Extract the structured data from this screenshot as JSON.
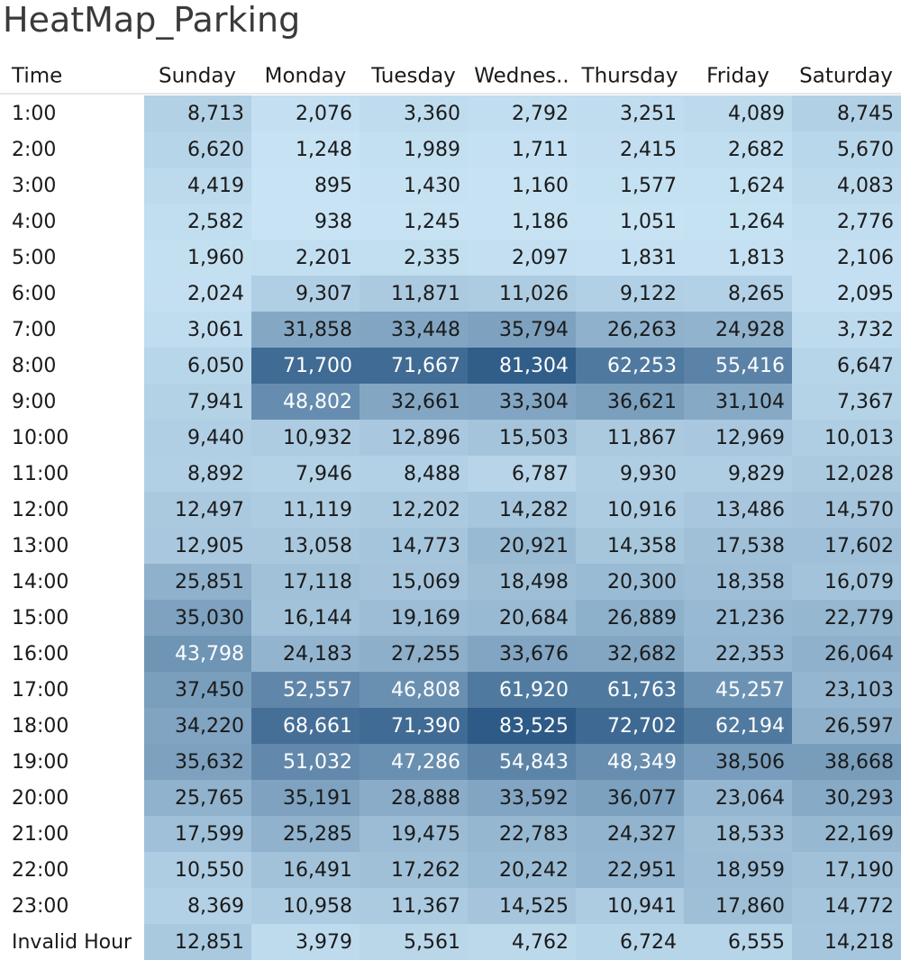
{
  "title": "HeatMap_Parking",
  "chart_data": {
    "type": "heatmap",
    "title": "HeatMap_Parking",
    "row_header": "Time",
    "columns": [
      "Sunday",
      "Monday",
      "Tuesday",
      "Wednes..",
      "Thursday",
      "Friday",
      "Saturday"
    ],
    "rows": [
      "1:00",
      "2:00",
      "3:00",
      "4:00",
      "5:00",
      "6:00",
      "7:00",
      "8:00",
      "9:00",
      "10:00",
      "11:00",
      "12:00",
      "13:00",
      "14:00",
      "15:00",
      "16:00",
      "17:00",
      "18:00",
      "19:00",
      "20:00",
      "21:00",
      "22:00",
      "23:00",
      "Invalid Hour"
    ],
    "values": [
      [
        8713,
        2076,
        3360,
        2792,
        3251,
        4089,
        8745
      ],
      [
        6620,
        1248,
        1989,
        1711,
        2415,
        2682,
        5670
      ],
      [
        4419,
        895,
        1430,
        1160,
        1577,
        1624,
        4083
      ],
      [
        2582,
        938,
        1245,
        1186,
        1051,
        1264,
        2776
      ],
      [
        1960,
        2201,
        2335,
        2097,
        1831,
        1813,
        2106
      ],
      [
        2024,
        9307,
        11871,
        11026,
        9122,
        8265,
        2095
      ],
      [
        3061,
        31858,
        33448,
        35794,
        26263,
        24928,
        3732
      ],
      [
        6050,
        71700,
        71667,
        81304,
        62253,
        55416,
        6647
      ],
      [
        7941,
        48802,
        32661,
        33304,
        36621,
        31104,
        7367
      ],
      [
        9440,
        10932,
        12896,
        15503,
        11867,
        12969,
        10013
      ],
      [
        8892,
        7946,
        8488,
        6787,
        9930,
        9829,
        12028
      ],
      [
        12497,
        11119,
        12202,
        14282,
        10916,
        13486,
        14570
      ],
      [
        12905,
        13058,
        14773,
        20921,
        14358,
        17538,
        17602
      ],
      [
        25851,
        17118,
        15069,
        18498,
        20300,
        18358,
        16079
      ],
      [
        35030,
        16144,
        19169,
        20684,
        26889,
        21236,
        22779
      ],
      [
        43798,
        24183,
        27255,
        33676,
        32682,
        22353,
        26064
      ],
      [
        37450,
        52557,
        46808,
        61920,
        61763,
        45257,
        23103
      ],
      [
        34220,
        68661,
        71390,
        83525,
        72702,
        62194,
        26597
      ],
      [
        35632,
        51032,
        47286,
        54843,
        48349,
        38506,
        38668
      ],
      [
        25765,
        35191,
        28888,
        33592,
        36077,
        23064,
        30293
      ],
      [
        17599,
        25285,
        19475,
        22783,
        24327,
        18533,
        22169
      ],
      [
        10550,
        16491,
        17262,
        20242,
        22951,
        18959,
        17190
      ],
      [
        8369,
        10958,
        11367,
        14525,
        10941,
        17860,
        14772
      ],
      [
        12851,
        3979,
        5561,
        4762,
        6724,
        6555,
        14218
      ]
    ],
    "color_scale": {
      "low": "#c7e3f4",
      "high": "#2d5a86",
      "min": 895,
      "max": 83525
    },
    "light_text_color": "#ffffff",
    "dark_text_color": "#1a1a1a"
  }
}
